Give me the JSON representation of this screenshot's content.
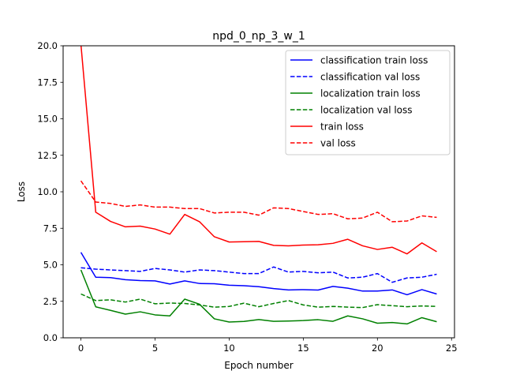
{
  "chart_data": {
    "type": "line",
    "title": "npd_0_np_3_w_1",
    "xlabel": "Epoch number",
    "ylabel": "Loss",
    "xlim": [
      -1.2,
      25.2
    ],
    "ylim": [
      0,
      20
    ],
    "xticks": [
      0,
      5,
      10,
      15,
      20,
      25
    ],
    "xtick_labels": [
      "0",
      "5",
      "10",
      "15",
      "20",
      "25"
    ],
    "yticks": [
      0,
      2.5,
      5,
      7.5,
      10,
      12.5,
      15,
      17.5,
      20
    ],
    "ytick_labels": [
      "0.0",
      "2.5",
      "5.0",
      "7.5",
      "10.0",
      "12.5",
      "15.0",
      "17.5",
      "20.0"
    ],
    "grid": false,
    "legend_position": "top-right",
    "x": [
      0,
      1,
      2,
      3,
      4,
      5,
      6,
      7,
      8,
      9,
      10,
      11,
      12,
      13,
      14,
      15,
      16,
      17,
      18,
      19,
      20,
      21,
      22,
      23,
      24
    ],
    "series": [
      {
        "name": "classification train loss",
        "color": "#0000ff",
        "dash": "solid",
        "values": [
          5.85,
          4.15,
          4.12,
          3.98,
          3.92,
          3.9,
          3.68,
          3.9,
          3.72,
          3.7,
          3.6,
          3.57,
          3.5,
          3.37,
          3.28,
          3.3,
          3.27,
          3.52,
          3.4,
          3.2,
          3.2,
          3.28,
          2.95,
          3.3,
          3.0
        ]
      },
      {
        "name": "classification val loss",
        "color": "#0000ff",
        "dash": "dashed",
        "values": [
          4.8,
          4.7,
          4.65,
          4.6,
          4.55,
          4.75,
          4.65,
          4.5,
          4.65,
          4.6,
          4.5,
          4.4,
          4.4,
          4.85,
          4.5,
          4.55,
          4.45,
          4.5,
          4.1,
          4.15,
          4.4,
          3.8,
          4.1,
          4.15,
          4.35
        ]
      },
      {
        "name": "localization train loss",
        "color": "#008000",
        "dash": "solid",
        "values": [
          4.65,
          2.12,
          1.88,
          1.62,
          1.78,
          1.57,
          1.5,
          2.65,
          2.3,
          1.3,
          1.08,
          1.12,
          1.25,
          1.13,
          1.15,
          1.18,
          1.24,
          1.13,
          1.5,
          1.3,
          1.0,
          1.05,
          0.95,
          1.38,
          1.1
        ]
      },
      {
        "name": "localization val loss",
        "color": "#008000",
        "dash": "dashed",
        "values": [
          3.0,
          2.55,
          2.6,
          2.45,
          2.65,
          2.33,
          2.38,
          2.35,
          2.25,
          2.1,
          2.15,
          2.37,
          2.13,
          2.35,
          2.55,
          2.25,
          2.1,
          2.15,
          2.1,
          2.07,
          2.27,
          2.2,
          2.13,
          2.18,
          2.15
        ]
      },
      {
        "name": "train loss",
        "color": "#ff0000",
        "dash": "solid",
        "values": [
          20.1,
          8.6,
          7.97,
          7.6,
          7.65,
          7.45,
          7.1,
          8.45,
          7.95,
          6.92,
          6.56,
          6.58,
          6.6,
          6.33,
          6.3,
          6.35,
          6.37,
          6.47,
          6.75,
          6.3,
          6.05,
          6.2,
          5.75,
          6.5,
          5.9
        ]
      },
      {
        "name": "val loss",
        "color": "#ff0000",
        "dash": "dashed",
        "values": [
          10.75,
          9.3,
          9.2,
          9.0,
          9.1,
          8.95,
          8.95,
          8.85,
          8.85,
          8.55,
          8.6,
          8.6,
          8.4,
          8.9,
          8.85,
          8.65,
          8.45,
          8.5,
          8.15,
          8.2,
          8.6,
          7.95,
          8.0,
          8.35,
          8.25
        ]
      }
    ]
  }
}
